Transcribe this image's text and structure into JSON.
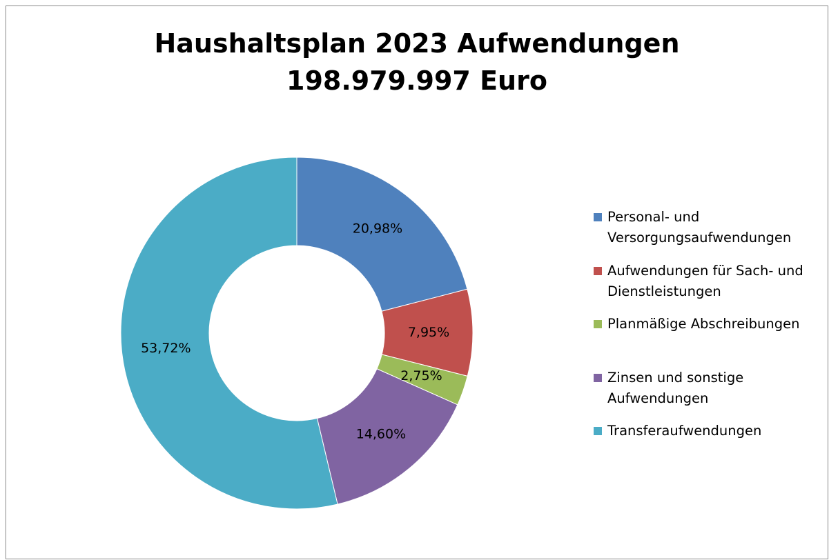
{
  "chart_data": {
    "type": "donut",
    "title": "Haushaltsplan 2023 Aufwendungen",
    "subtitle": "198.979.997 Euro",
    "categories": [
      "Personal- und Versorgungsaufwendungen",
      "Aufwendungen für Sach- und Dienstleistungen",
      "Planmäßige Abschreibungen",
      "Zinsen und sonstige Aufwendungen",
      "Transferaufwendungen"
    ],
    "values": [
      20.98,
      7.95,
      2.75,
      14.6,
      53.72
    ],
    "value_labels": [
      "20,98%",
      "7,95%",
      "2,75%",
      "14,60%",
      "53,72%"
    ],
    "colors": [
      "#4f81bd",
      "#c0504d",
      "#9bbb59",
      "#8064a2",
      "#4bacc6"
    ],
    "legend": "right"
  }
}
